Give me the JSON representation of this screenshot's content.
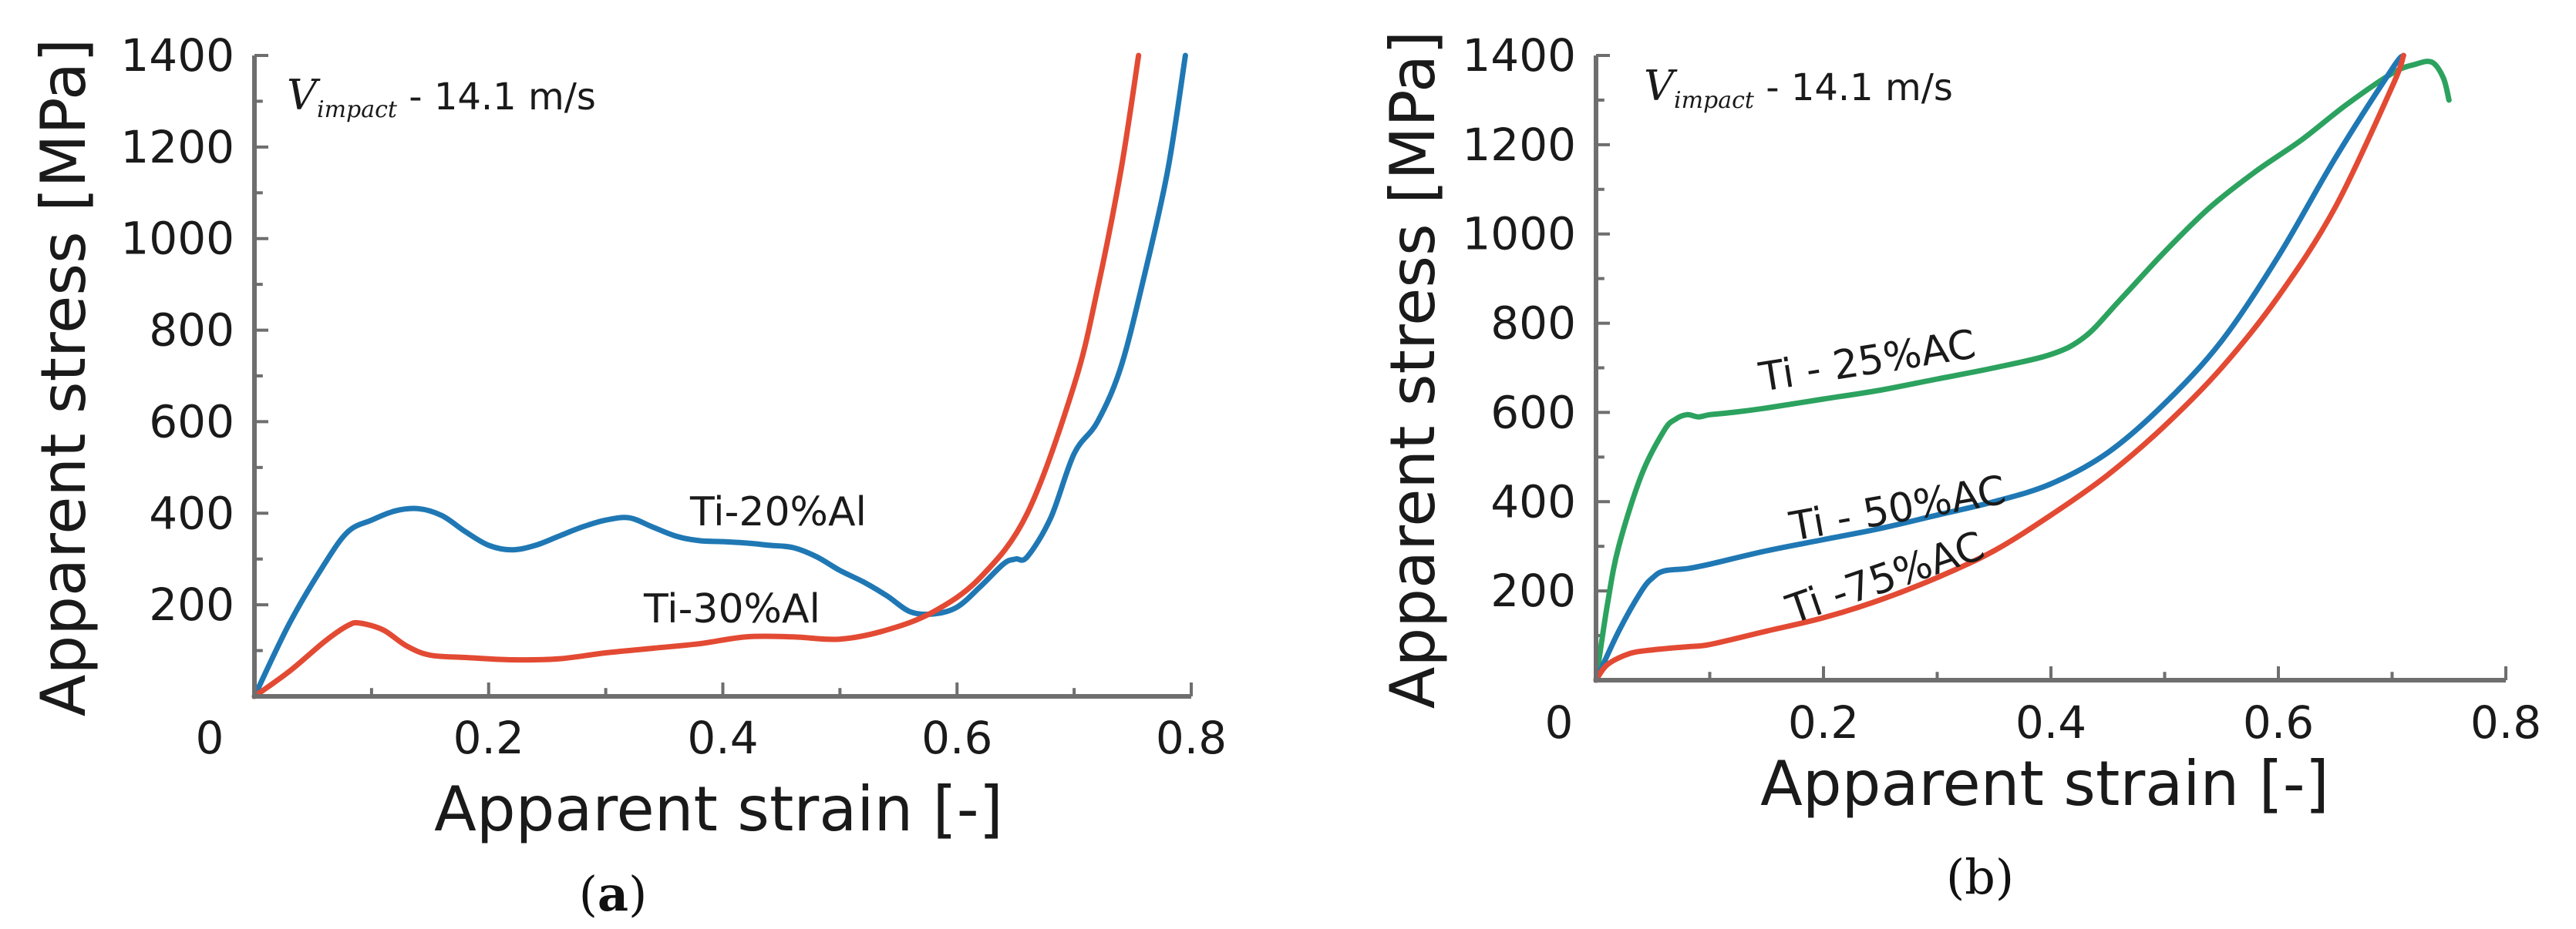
{
  "chart_data": [
    {
      "panel": "(a)",
      "type": "line",
      "xlabel": "Apparent strain [-]",
      "ylabel": "Apparent stress [MPa]",
      "xlim": [
        0,
        0.8
      ],
      "ylim": [
        0,
        1400
      ],
      "xticks": [
        0,
        0.2,
        0.4,
        0.6,
        0.8
      ],
      "xtick_labels": [
        "0",
        "0.2",
        "0.4",
        "0.6",
        "0.8"
      ],
      "yticks": [
        200,
        400,
        600,
        800,
        1000,
        1200,
        1400
      ],
      "ytick_labels": [
        "200",
        "400",
        "600",
        "800",
        "1000",
        "1200",
        "1400"
      ],
      "annotation": {
        "v": "V",
        "sub": "impact",
        "rest": " - 14.1 m/s"
      },
      "series": [
        {
          "name": "Ti-20%Al",
          "color": "#1f78b4",
          "x": [
            0,
            0.03,
            0.06,
            0.08,
            0.1,
            0.12,
            0.14,
            0.16,
            0.18,
            0.2,
            0.22,
            0.24,
            0.26,
            0.28,
            0.3,
            0.32,
            0.34,
            0.36,
            0.38,
            0.4,
            0.42,
            0.44,
            0.46,
            0.48,
            0.5,
            0.52,
            0.54,
            0.56,
            0.58,
            0.6,
            0.62,
            0.64,
            0.65,
            0.66,
            0.68,
            0.7,
            0.72,
            0.74,
            0.76,
            0.78,
            0.795
          ],
          "y": [
            0,
            160,
            290,
            360,
            385,
            405,
            410,
            395,
            360,
            330,
            320,
            330,
            350,
            370,
            385,
            390,
            370,
            350,
            340,
            338,
            335,
            330,
            325,
            305,
            275,
            250,
            220,
            185,
            180,
            195,
            240,
            290,
            300,
            305,
            390,
            530,
            600,
            720,
            920,
            1150,
            1400
          ]
        },
        {
          "name": "Ti-30%Al",
          "color": "#e34a33",
          "x": [
            0,
            0.03,
            0.06,
            0.08,
            0.09,
            0.11,
            0.13,
            0.15,
            0.18,
            0.22,
            0.26,
            0.3,
            0.34,
            0.38,
            0.42,
            0.46,
            0.5,
            0.54,
            0.58,
            0.62,
            0.66,
            0.7,
            0.72,
            0.74,
            0.755
          ],
          "y": [
            0,
            55,
            120,
            155,
            160,
            145,
            110,
            90,
            85,
            80,
            82,
            95,
            105,
            115,
            130,
            130,
            125,
            145,
            185,
            260,
            400,
            680,
            890,
            1150,
            1400
          ]
        }
      ]
    },
    {
      "panel": "(b)",
      "type": "line",
      "xlabel": "Apparent strain [-]",
      "ylabel": "Apparent stress [MPa]",
      "xlim": [
        0,
        0.8
      ],
      "ylim": [
        0,
        1400
      ],
      "xticks": [
        0,
        0.2,
        0.4,
        0.6,
        0.8
      ],
      "xtick_labels": [
        "0",
        "0.2",
        "0.4",
        "0.6",
        "0.8"
      ],
      "yticks": [
        200,
        400,
        600,
        800,
        1000,
        1200,
        1400
      ],
      "ytick_labels": [
        "200",
        "400",
        "600",
        "800",
        "1000",
        "1200",
        "1400"
      ],
      "annotation": {
        "v": "V",
        "sub": "impact",
        "rest": " - 14.1 m/s"
      },
      "series": [
        {
          "name": "Ti - 25%AC",
          "color": "#2ca25f",
          "x": [
            0,
            0.01,
            0.02,
            0.04,
            0.06,
            0.07,
            0.08,
            0.09,
            0.1,
            0.12,
            0.15,
            0.2,
            0.25,
            0.3,
            0.35,
            0.4,
            0.43,
            0.46,
            0.5,
            0.54,
            0.58,
            0.62,
            0.66,
            0.7,
            0.72,
            0.735,
            0.745,
            0.75
          ],
          "y": [
            0,
            170,
            300,
            460,
            560,
            585,
            595,
            590,
            595,
            600,
            610,
            630,
            650,
            675,
            700,
            730,
            770,
            850,
            960,
            1060,
            1140,
            1210,
            1290,
            1360,
            1380,
            1385,
            1350,
            1300
          ]
        },
        {
          "name": "Ti - 50%AC",
          "color": "#1f78b4",
          "x": [
            0,
            0.02,
            0.04,
            0.05,
            0.06,
            0.08,
            0.1,
            0.15,
            0.2,
            0.25,
            0.3,
            0.35,
            0.4,
            0.45,
            0.5,
            0.55,
            0.6,
            0.65,
            0.7,
            0.71
          ],
          "y": [
            0,
            110,
            200,
            230,
            245,
            250,
            260,
            290,
            315,
            340,
            370,
            400,
            440,
            510,
            620,
            760,
            950,
            1170,
            1370,
            1400
          ]
        },
        {
          "name": "Ti -75%AC",
          "color": "#e34a33",
          "x": [
            0,
            0.01,
            0.03,
            0.05,
            0.08,
            0.1,
            0.15,
            0.2,
            0.25,
            0.3,
            0.35,
            0.4,
            0.45,
            0.5,
            0.55,
            0.6,
            0.65,
            0.7,
            0.71
          ],
          "y": [
            0,
            35,
            60,
            68,
            75,
            80,
            110,
            140,
            180,
            230,
            290,
            370,
            460,
            570,
            700,
            860,
            1060,
            1330,
            1400
          ]
        }
      ]
    }
  ],
  "labels": {
    "a_series_1": "Ti-20%Al",
    "a_series_2": "Ti-30%Al",
    "b_series_1": "Ti - 25%AC",
    "b_series_2": "Ti - 50%AC",
    "b_series_3": "Ti -75%AC",
    "panel_a_open": "(",
    "panel_a_letter": "a",
    "panel_a_close": ")",
    "panel_b": "(b)",
    "zero_a": "0",
    "zero_b": "0"
  }
}
